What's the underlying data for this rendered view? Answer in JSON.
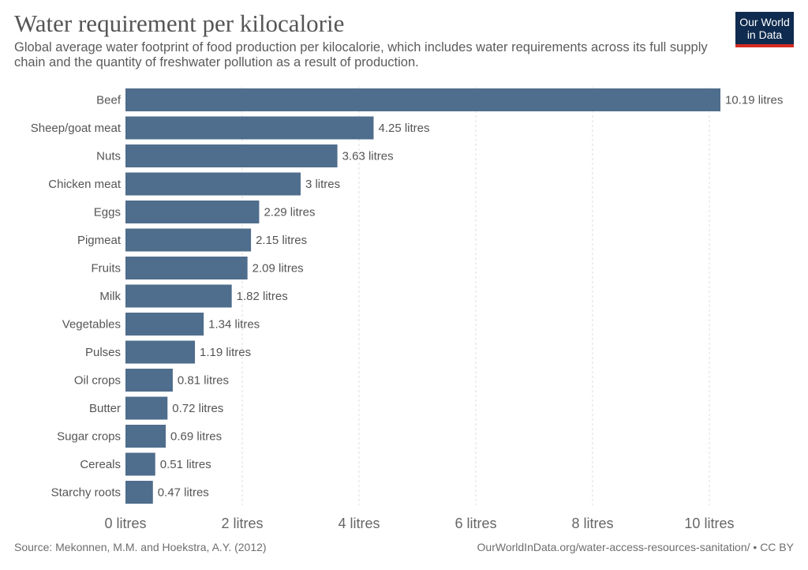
{
  "header": {
    "title": "Water requirement per kilocalorie",
    "subtitle": "Global average water footprint of food production per kilocalorie, which includes water requirements across its full supply chain and the quantity of freshwater pollution as a result of production."
  },
  "logo": {
    "line1": "Our World",
    "line2": "in Data"
  },
  "footer": {
    "source": "Source: Mekonnen, M.M. and Hoekstra, A.Y. (2012)",
    "url": "OurWorldInData.org/water-access-resources-sanitation/ • CC BY"
  },
  "colors": {
    "bar": "#4f6d8c",
    "grid": "#dddddd",
    "text": "#555555",
    "logo_bg": "#0f2b4f",
    "logo_accent": "#d42b21"
  },
  "chart_data": {
    "type": "bar",
    "orientation": "horizontal",
    "unit_suffix": " litres",
    "categories": [
      "Beef",
      "Sheep/goat meat",
      "Nuts",
      "Chicken meat",
      "Eggs",
      "Pigmeat",
      "Fruits",
      "Milk",
      "Vegetables",
      "Pulses",
      "Oil crops",
      "Butter",
      "Sugar crops",
      "Cereals",
      "Starchy roots"
    ],
    "values": [
      10.19,
      4.25,
      3.63,
      3,
      2.29,
      2.15,
      2.09,
      1.82,
      1.34,
      1.19,
      0.81,
      0.72,
      0.69,
      0.51,
      0.47
    ],
    "value_labels": [
      "10.19 litres",
      "4.25 litres",
      "3.63 litres",
      "3 litres",
      "2.29 litres",
      "2.15 litres",
      "2.09 litres",
      "1.82 litres",
      "1.34 litres",
      "1.19 litres",
      "0.81 litres",
      "0.72 litres",
      "0.69 litres",
      "0.51 litres",
      "0.47 litres"
    ],
    "xticks": [
      0,
      2,
      4,
      6,
      8,
      10
    ],
    "xtick_labels": [
      "0 litres",
      "2 litres",
      "4 litres",
      "6 litres",
      "8 litres",
      "10 litres"
    ],
    "xlim": [
      0,
      10.19
    ],
    "grid": true
  }
}
